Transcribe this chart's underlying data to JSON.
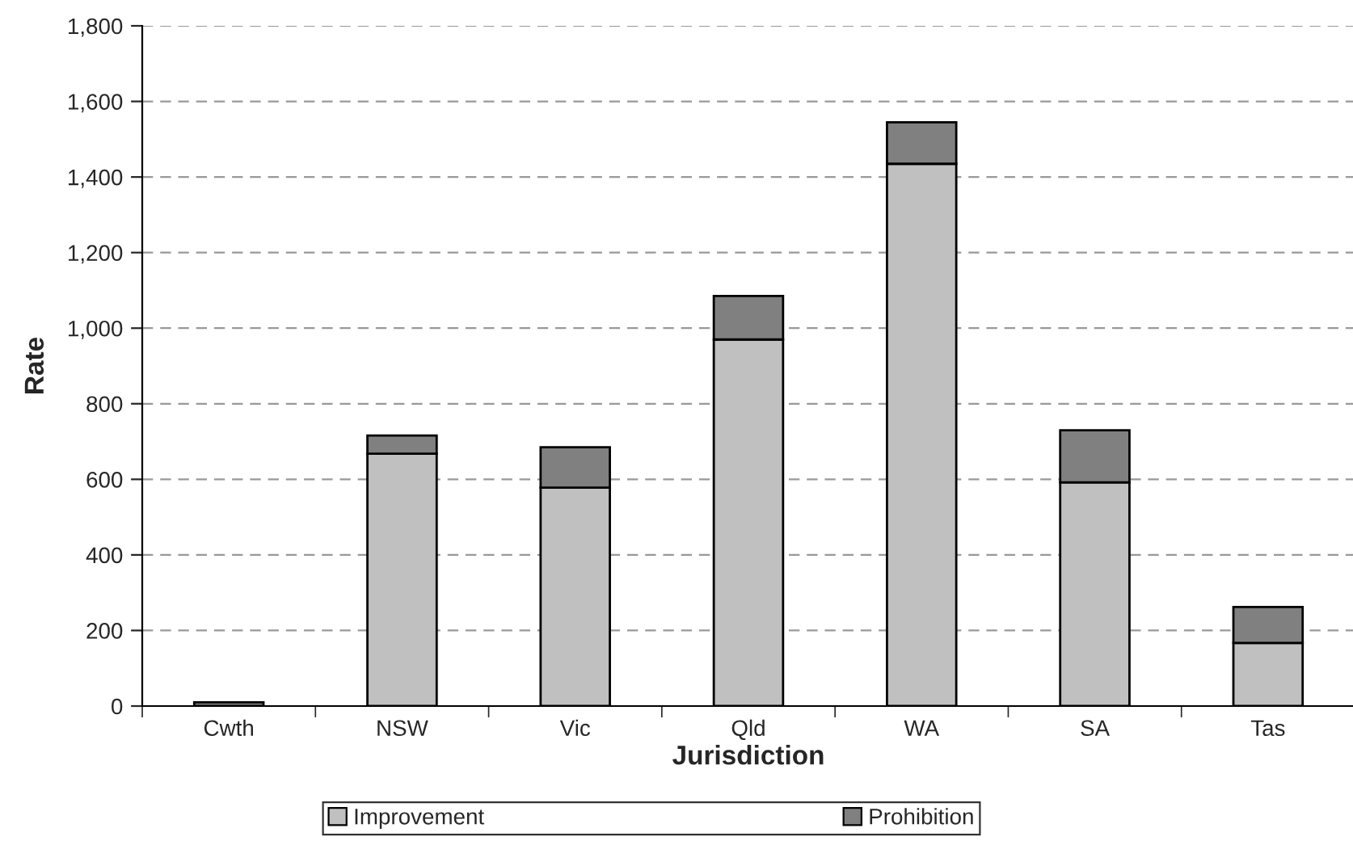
{
  "chart_data": {
    "type": "bar",
    "stacked": true,
    "xlabel": "Jurisdiction",
    "ylabel": "Rate",
    "categories": [
      "Cwth",
      "NSW",
      "Vic",
      "Qld",
      "WA",
      "SA",
      "Tas"
    ],
    "series": [
      {
        "name": "Improvement",
        "color": "#c0c0c0",
        "values": [
          0,
          668,
          578,
          970,
          1435,
          592,
          167
        ]
      },
      {
        "name": "Prohibition",
        "color": "#808080",
        "values": [
          10,
          48,
          107,
          115,
          110,
          138,
          95
        ]
      }
    ],
    "ylim": [
      0,
      1800
    ],
    "yticks": [
      {
        "value": 0,
        "label": "0"
      },
      {
        "value": 200,
        "label": "200"
      },
      {
        "value": 400,
        "label": "400"
      },
      {
        "value": 600,
        "label": "600"
      },
      {
        "value": 800,
        "label": "800"
      },
      {
        "value": 1000,
        "label": "1,000"
      },
      {
        "value": 1200,
        "label": "1,200"
      },
      {
        "value": 1400,
        "label": "1,400"
      },
      {
        "value": 1600,
        "label": "1,600"
      },
      {
        "value": 1800,
        "label": "1,800"
      }
    ],
    "grid": "y",
    "legend": "bottom"
  }
}
